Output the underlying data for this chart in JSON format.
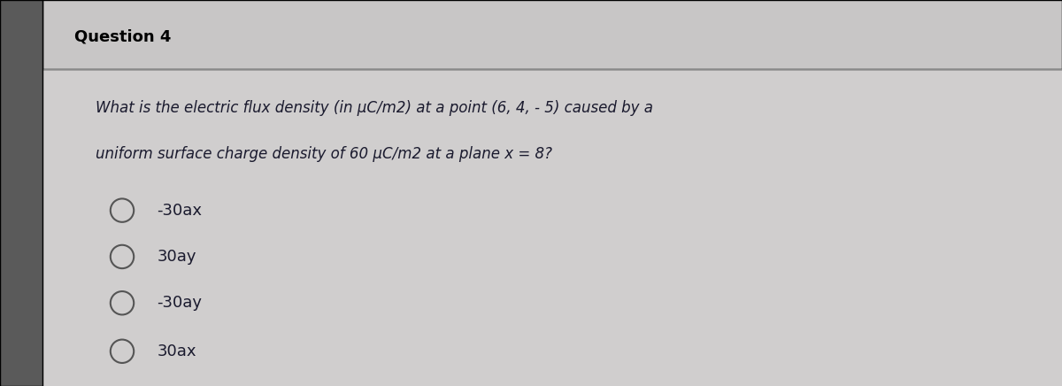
{
  "title": "Question 4",
  "question_line1": "What is the electric flux density (in μC/m2) at a point (6, 4, - 5) caused by a",
  "question_line2": "uniform surface charge density of 60 μC/m2 at a plane x = 8?",
  "options": [
    "-30ax",
    "30ay",
    "-30ay",
    "30ax"
  ],
  "bg_color": "#d0cece",
  "panel_color": "#e8e6e6",
  "title_bg_color": "#c8c6c6",
  "title_color": "#000000",
  "question_color": "#1a1a2e",
  "option_color": "#1a1a2e",
  "title_fontsize": 13,
  "question_fontsize": 12,
  "option_fontsize": 13,
  "left_bar_color": "#5a5a5a",
  "left_bar_width": 0.04
}
